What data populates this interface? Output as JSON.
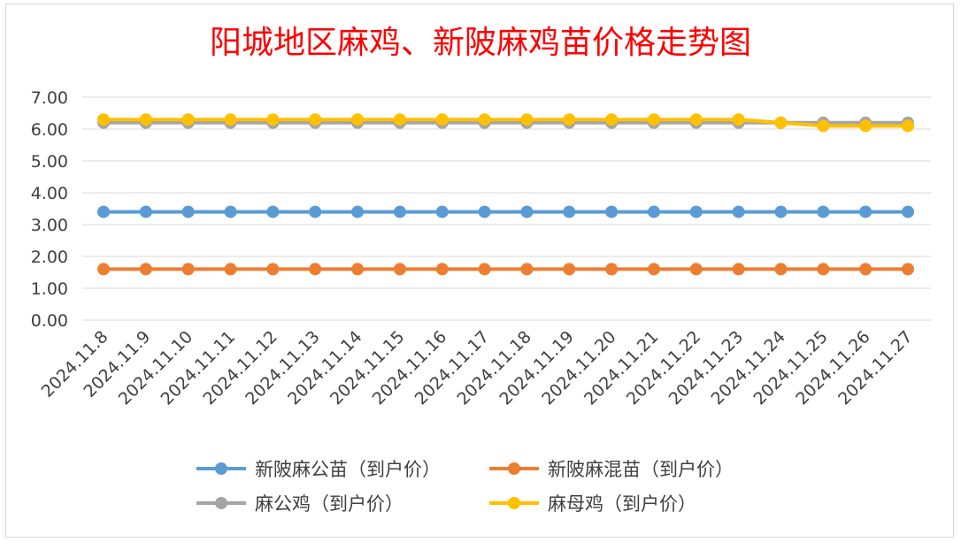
{
  "chart_data": {
    "type": "line",
    "title": "阳城地区麻鸡、新陂麻鸡苗价格走势图",
    "xlabel": "",
    "ylabel": "",
    "ylim": [
      0,
      7
    ],
    "yticks": [
      "0.00",
      "1.00",
      "2.00",
      "3.00",
      "4.00",
      "5.00",
      "6.00",
      "7.00"
    ],
    "grid": true,
    "legend_position": "bottom",
    "x": [
      "2024.11.8",
      "2024.11.9",
      "2024.11.10",
      "2024.11.11",
      "2024.11.12",
      "2024.11.13",
      "2024.11.14",
      "2024.11.15",
      "2024.11.16",
      "2024.11.17",
      "2024.11.18",
      "2024.11.19",
      "2024.11.20",
      "2024.11.21",
      "2024.11.22",
      "2024.11.23",
      "2024.11.24",
      "2024.11.25",
      "2024.11.26",
      "2024.11.27"
    ],
    "series": [
      {
        "name": "新陂麻公苗（到户价）",
        "color": "#5b9bd5",
        "values": [
          3.4,
          3.4,
          3.4,
          3.4,
          3.4,
          3.4,
          3.4,
          3.4,
          3.4,
          3.4,
          3.4,
          3.4,
          3.4,
          3.4,
          3.4,
          3.4,
          3.4,
          3.4,
          3.4,
          3.4
        ]
      },
      {
        "name": "新陂麻混苗（到户价）",
        "color": "#ed7d31",
        "values": [
          1.6,
          1.6,
          1.6,
          1.6,
          1.6,
          1.6,
          1.6,
          1.6,
          1.6,
          1.6,
          1.6,
          1.6,
          1.6,
          1.6,
          1.6,
          1.6,
          1.6,
          1.6,
          1.6,
          1.6
        ]
      },
      {
        "name": "麻公鸡（到户价）",
        "color": "#a5a5a5",
        "values": [
          6.2,
          6.2,
          6.2,
          6.2,
          6.2,
          6.2,
          6.2,
          6.2,
          6.2,
          6.2,
          6.2,
          6.2,
          6.2,
          6.2,
          6.2,
          6.2,
          6.2,
          6.2,
          6.2,
          6.2
        ]
      },
      {
        "name": "麻母鸡（到户价）",
        "color": "#ffc000",
        "values": [
          6.3,
          6.3,
          6.3,
          6.3,
          6.3,
          6.3,
          6.3,
          6.3,
          6.3,
          6.3,
          6.3,
          6.3,
          6.3,
          6.3,
          6.3,
          6.3,
          6.2,
          6.1,
          6.1,
          6.1
        ]
      }
    ]
  }
}
